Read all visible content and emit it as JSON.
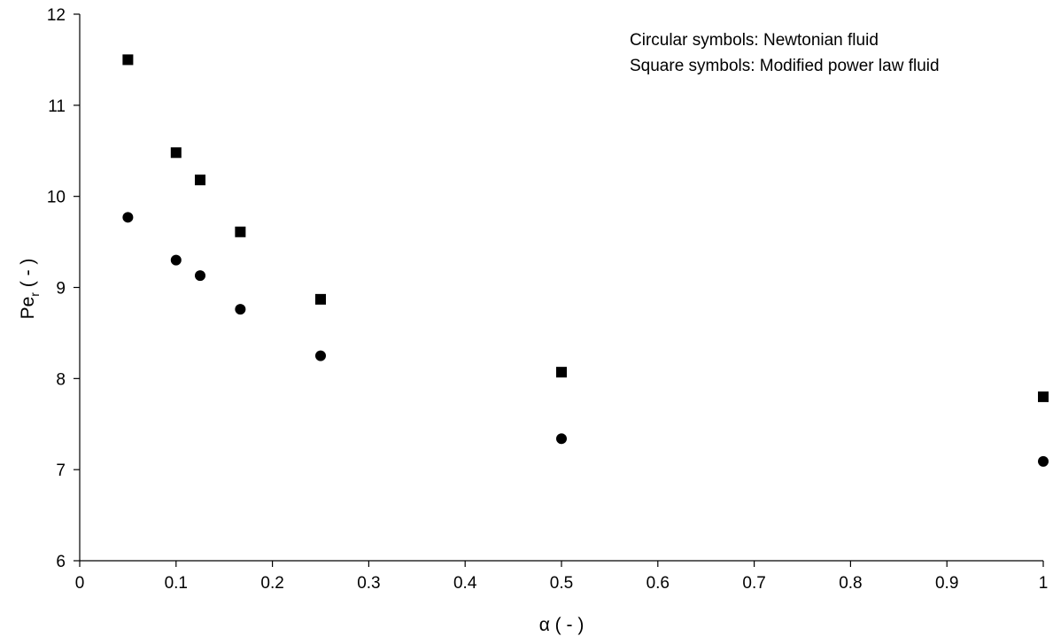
{
  "chart_data": {
    "type": "scatter",
    "title": "",
    "xlabel": "α ( - )",
    "ylabel": {
      "main": "Pe",
      "sub": "r",
      "suffix": " ( - )"
    },
    "xlim": [
      0,
      1
    ],
    "ylim": [
      6,
      12
    ],
    "xticks": [
      "0",
      "0.1",
      "0.2",
      "0.3",
      "0.4",
      "0.5",
      "0.6",
      "0.7",
      "0.8",
      "0.9",
      "1"
    ],
    "yticks": [
      "6",
      "7",
      "8",
      "9",
      "10",
      "11",
      "12"
    ],
    "grid": false,
    "legend_position": "top-right",
    "annotations": [
      "Circular symbols: Newtonian fluid",
      "Square symbols: Modified power law fluid"
    ],
    "series": [
      {
        "marker": "circle",
        "color": "#000000",
        "points": [
          {
            "x": 0.05,
            "y": 9.77
          },
          {
            "x": 0.1,
            "y": 9.3
          },
          {
            "x": 0.125,
            "y": 9.13
          },
          {
            "x": 0.1667,
            "y": 8.76
          },
          {
            "x": 0.25,
            "y": 8.25
          },
          {
            "x": 0.5,
            "y": 7.34
          },
          {
            "x": 1.0,
            "y": 7.09
          }
        ]
      },
      {
        "marker": "square",
        "color": "#000000",
        "points": [
          {
            "x": 0.05,
            "y": 11.5
          },
          {
            "x": 0.1,
            "y": 10.48
          },
          {
            "x": 0.125,
            "y": 10.18
          },
          {
            "x": 0.1667,
            "y": 9.61
          },
          {
            "x": 0.25,
            "y": 8.87
          },
          {
            "x": 0.5,
            "y": 8.07
          },
          {
            "x": 1.0,
            "y": 7.8
          }
        ]
      }
    ]
  }
}
